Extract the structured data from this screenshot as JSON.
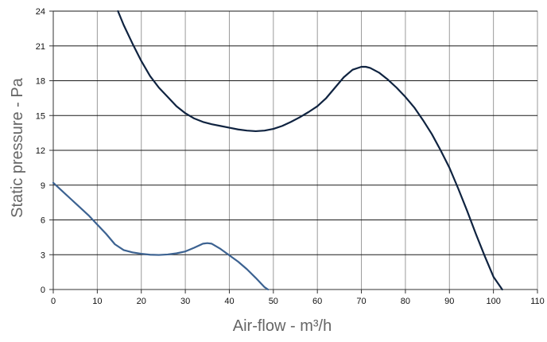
{
  "chart_data": {
    "type": "line",
    "title": "",
    "xlabel": "Air-flow - m³/h",
    "ylabel": "Static pressure - Pa",
    "xlim": [
      0,
      110
    ],
    "ylim": [
      0,
      24
    ],
    "x_ticks": [
      0,
      10,
      20,
      30,
      40,
      50,
      60,
      70,
      80,
      90,
      100,
      110
    ],
    "y_ticks": [
      0,
      3,
      6,
      9,
      12,
      15,
      18,
      21,
      24
    ],
    "grid": true,
    "legend": "none",
    "series": [
      {
        "color": "#0f2340",
        "points": [
          [
            14.7,
            24.0
          ],
          [
            16,
            22.8
          ],
          [
            18,
            21.2
          ],
          [
            20,
            19.7
          ],
          [
            22,
            18.4
          ],
          [
            24,
            17.4
          ],
          [
            26,
            16.6
          ],
          [
            28,
            15.8
          ],
          [
            30,
            15.2
          ],
          [
            32,
            14.75
          ],
          [
            34,
            14.45
          ],
          [
            36,
            14.25
          ],
          [
            38,
            14.1
          ],
          [
            40,
            13.95
          ],
          [
            42,
            13.8
          ],
          [
            44,
            13.7
          ],
          [
            46,
            13.65
          ],
          [
            48,
            13.7
          ],
          [
            50,
            13.85
          ],
          [
            52,
            14.1
          ],
          [
            54,
            14.45
          ],
          [
            56,
            14.85
          ],
          [
            58,
            15.3
          ],
          [
            60,
            15.8
          ],
          [
            62,
            16.5
          ],
          [
            64,
            17.4
          ],
          [
            66,
            18.3
          ],
          [
            68,
            18.95
          ],
          [
            70,
            19.2
          ],
          [
            71,
            19.2
          ],
          [
            72,
            19.1
          ],
          [
            74,
            18.7
          ],
          [
            76,
            18.1
          ],
          [
            78,
            17.4
          ],
          [
            80,
            16.6
          ],
          [
            82,
            15.7
          ],
          [
            84,
            14.6
          ],
          [
            86,
            13.4
          ],
          [
            88,
            12.0
          ],
          [
            90,
            10.5
          ],
          [
            92,
            8.7
          ],
          [
            94,
            6.8
          ],
          [
            96,
            4.8
          ],
          [
            98,
            2.9
          ],
          [
            100,
            1.1
          ],
          [
            102,
            0.0
          ]
        ]
      },
      {
        "color": "#3c6291",
        "points": [
          [
            0,
            9.2
          ],
          [
            2,
            8.5
          ],
          [
            4,
            7.8
          ],
          [
            6,
            7.1
          ],
          [
            8,
            6.4
          ],
          [
            10,
            5.6
          ],
          [
            12,
            4.8
          ],
          [
            14,
            3.9
          ],
          [
            16,
            3.4
          ],
          [
            18,
            3.2
          ],
          [
            20,
            3.08
          ],
          [
            22,
            3.0
          ],
          [
            24,
            2.98
          ],
          [
            26,
            3.02
          ],
          [
            28,
            3.12
          ],
          [
            30,
            3.28
          ],
          [
            32,
            3.6
          ],
          [
            34,
            3.95
          ],
          [
            35,
            4.0
          ],
          [
            36,
            3.95
          ],
          [
            38,
            3.5
          ],
          [
            40,
            2.95
          ],
          [
            42,
            2.4
          ],
          [
            44,
            1.75
          ],
          [
            46,
            1.0
          ],
          [
            48,
            0.2
          ],
          [
            48.8,
            0.0
          ]
        ]
      }
    ]
  }
}
